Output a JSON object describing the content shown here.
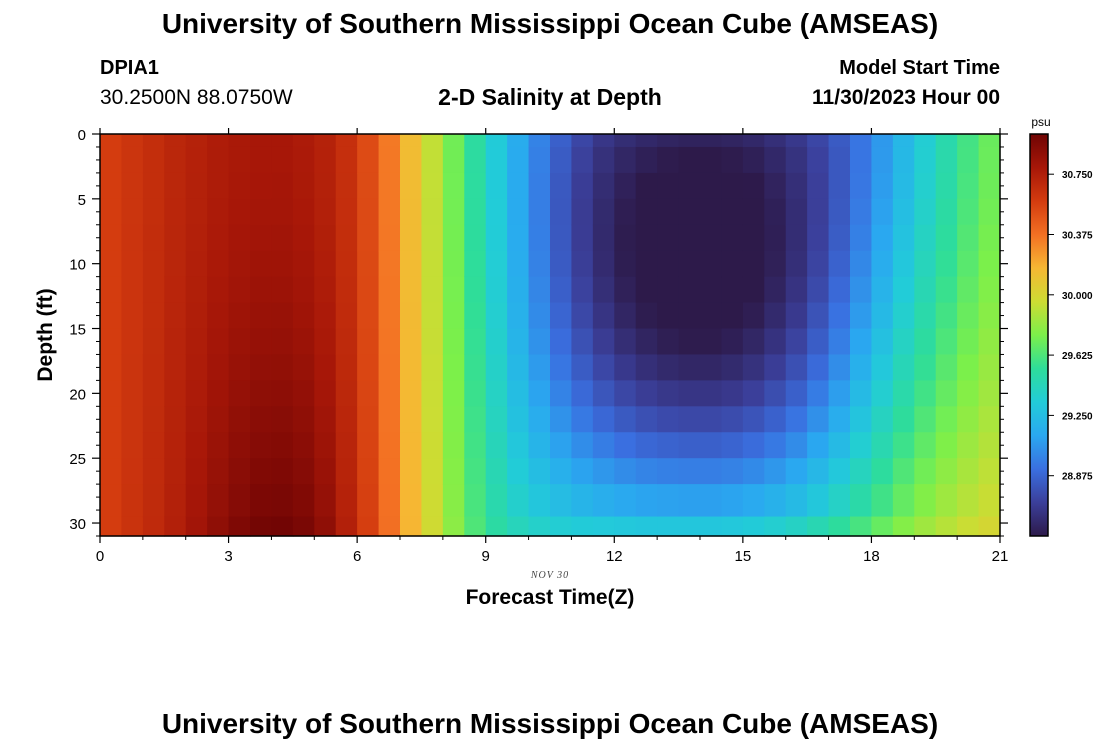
{
  "title": "University of Southern Mississippi Ocean Cube (AMSEAS)",
  "bottom_title": "University of Southern Mississippi Ocean Cube (AMSEAS)",
  "station": {
    "id": "DPIA1",
    "coords": "30.2500N  88.0750W"
  },
  "subtitle": "2-D Salinity at Depth",
  "model_start": {
    "label": "Model Start Time",
    "value": "11/30/2023 Hour 00"
  },
  "chart_data": {
    "type": "heatmap",
    "title": "2-D Salinity at Depth",
    "xlabel": "Forecast Time(Z)",
    "ylabel": "Depth (ft)",
    "date_label": "NOV 30",
    "xlim": [
      0,
      21
    ],
    "ylim": [
      0,
      31
    ],
    "x_ticks": [
      0,
      3,
      6,
      9,
      12,
      15,
      18,
      21
    ],
    "y_ticks": [
      0,
      5,
      10,
      15,
      20,
      25,
      30
    ],
    "colorbar": {
      "unit": "psu",
      "min": 28.5,
      "max": 31.0,
      "tick_values": [
        30.75,
        30.375,
        30.0,
        29.625,
        29.25,
        28.875
      ],
      "tick_labels": [
        "30.750",
        "30.375",
        "30.000",
        "29.625",
        "29.250",
        "28.875"
      ],
      "colors": [
        "#2d1a4a",
        "#3b3f9a",
        "#3a6fe0",
        "#2aa8f0",
        "#22ccd8",
        "#2edd9a",
        "#7cf04a",
        "#cddc33",
        "#f6b733",
        "#f37023",
        "#d33b0f",
        "#a71708",
        "#6f0404"
      ]
    },
    "columns_x": [
      0.25,
      0.75,
      1.25,
      1.75,
      2.25,
      2.75,
      3.25,
      3.75,
      4.25,
      4.75,
      5.25,
      5.75,
      6.25,
      6.75,
      7.25,
      7.75,
      8.25,
      8.75,
      9.25,
      9.75,
      10.25,
      10.75,
      11.25,
      11.75,
      12.25,
      12.75,
      13.25,
      13.75,
      14.25,
      14.75,
      15.25,
      15.75,
      16.25,
      16.75,
      17.25,
      17.75,
      18.25,
      18.75,
      19.25,
      19.75,
      20.25,
      20.75
    ],
    "depth_levels": [
      0,
      2,
      4,
      6,
      8,
      10,
      12,
      14,
      16,
      18,
      20,
      22,
      24,
      26,
      28,
      31
    ],
    "surface_salinity": [
      30.58,
      30.62,
      30.66,
      30.7,
      30.73,
      30.76,
      30.78,
      30.79,
      30.79,
      30.77,
      30.73,
      30.65,
      30.52,
      30.35,
      30.14,
      29.93,
      29.72,
      29.52,
      29.33,
      29.15,
      28.99,
      28.85,
      28.74,
      28.66,
      28.61,
      28.58,
      28.56,
      28.55,
      28.55,
      28.56,
      28.58,
      28.62,
      28.67,
      28.74,
      28.83,
      28.94,
      29.07,
      29.21,
      29.35,
      29.48,
      29.6,
      29.7
    ],
    "bottom_salinity": [
      30.58,
      30.63,
      30.68,
      30.74,
      30.81,
      30.88,
      30.94,
      30.98,
      30.99,
      30.96,
      30.88,
      30.74,
      30.57,
      30.38,
      30.17,
      29.97,
      29.79,
      29.63,
      29.51,
      29.43,
      29.38,
      29.35,
      29.33,
      29.32,
      29.31,
      29.3,
      29.3,
      29.3,
      29.3,
      29.31,
      29.33,
      29.36,
      29.4,
      29.46,
      29.53,
      29.61,
      29.69,
      29.77,
      29.84,
      29.9,
      29.95,
      29.99
    ],
    "mid_depth_anomaly": [
      0,
      0,
      0,
      0,
      0,
      0,
      0,
      0,
      0,
      0,
      0,
      0,
      0,
      0,
      0,
      0,
      0,
      0,
      -0.02,
      -0.05,
      -0.08,
      -0.12,
      -0.16,
      -0.2,
      -0.24,
      -0.27,
      -0.29,
      -0.3,
      -0.3,
      -0.29,
      -0.27,
      -0.24,
      -0.2,
      -0.15,
      -0.1,
      -0.05,
      -0.02,
      0,
      0,
      0,
      0,
      0
    ]
  }
}
